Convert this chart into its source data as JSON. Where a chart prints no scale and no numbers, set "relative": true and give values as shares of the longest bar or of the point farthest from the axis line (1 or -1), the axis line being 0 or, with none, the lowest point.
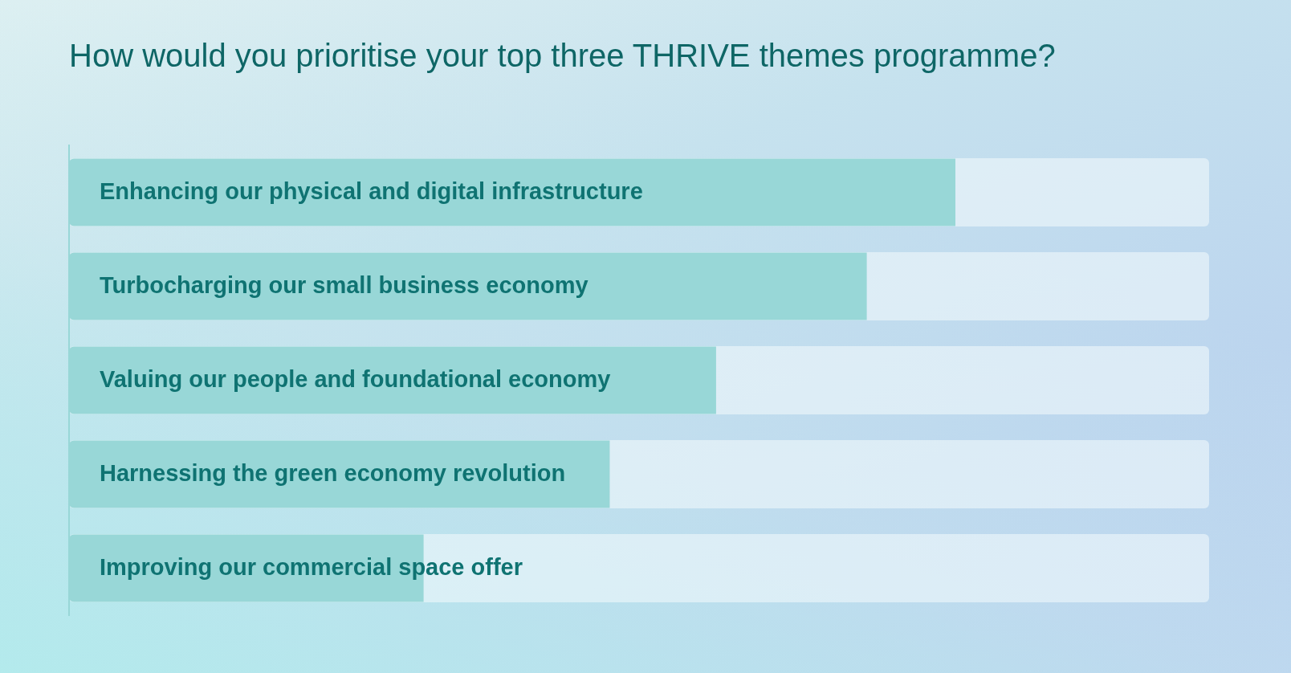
{
  "chart_data": {
    "type": "bar",
    "orientation": "horizontal",
    "relative": true,
    "title": "How would you prioritise your top three THRIVE themes programme?",
    "categories": [
      "Enhancing our physical and digital infrastructure",
      "Turbocharging our small business economy",
      "Valuing our people and foundational economy",
      "Harnessing the green economy revolution",
      "Improving our commercial space offer"
    ],
    "values": [
      1,
      0.9,
      0.73,
      0.61,
      0.4
    ],
    "color": "#98d7d7",
    "legend": false
  }
}
